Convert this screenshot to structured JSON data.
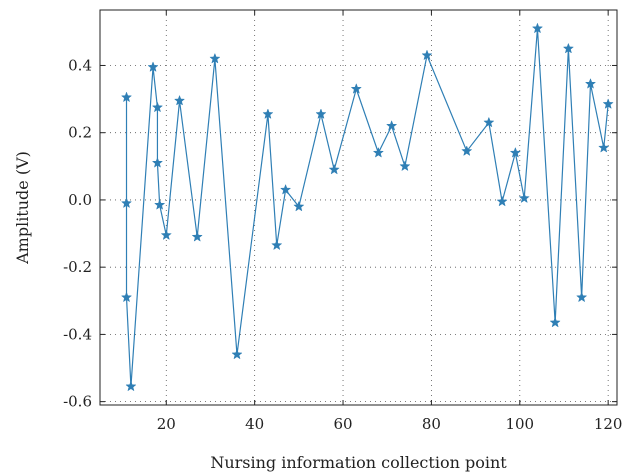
{
  "chart_data": {
    "type": "line",
    "title": "",
    "xlabel": "Nursing information collection point",
    "ylabel": "Amplitude (V)",
    "xlim": [
      5,
      122
    ],
    "ylim": [
      -0.61,
      0.565
    ],
    "x_ticks": [
      20,
      40,
      60,
      80,
      100,
      120
    ],
    "x_tick_labels": [
      "20",
      "40",
      "60",
      "80",
      "100",
      "120"
    ],
    "y_ticks": [
      -0.6,
      -0.4,
      -0.2,
      0.0,
      0.2,
      0.4
    ],
    "y_tick_labels": [
      "-0.6",
      "-0.4",
      "-0.2",
      "0.0",
      "0.2",
      "0.4"
    ],
    "grid": true,
    "grid_style": "dotted",
    "marker": "star",
    "colors": {
      "series": "#2f7fb5"
    },
    "series": [
      {
        "x": [
          11,
          11,
          11,
          12,
          17,
          18,
          18,
          18.5,
          20,
          23,
          27,
          31,
          36,
          43,
          45,
          47,
          50,
          55,
          58,
          63,
          68,
          71,
          74,
          79,
          88,
          93,
          96,
          99,
          101,
          104,
          108,
          111,
          114,
          116,
          119,
          120
        ],
        "y": [
          0.305,
          -0.01,
          -0.29,
          -0.555,
          0.395,
          0.275,
          0.11,
          -0.015,
          -0.105,
          0.295,
          -0.11,
          0.42,
          -0.46,
          0.255,
          -0.135,
          0.03,
          -0.02,
          0.255,
          0.09,
          0.33,
          0.14,
          0.22,
          0.1,
          0.43,
          0.145,
          0.23,
          -0.005,
          0.14,
          0.005,
          0.51,
          -0.365,
          0.45,
          -0.29,
          0.345,
          0.155,
          0.285
        ]
      }
    ]
  }
}
